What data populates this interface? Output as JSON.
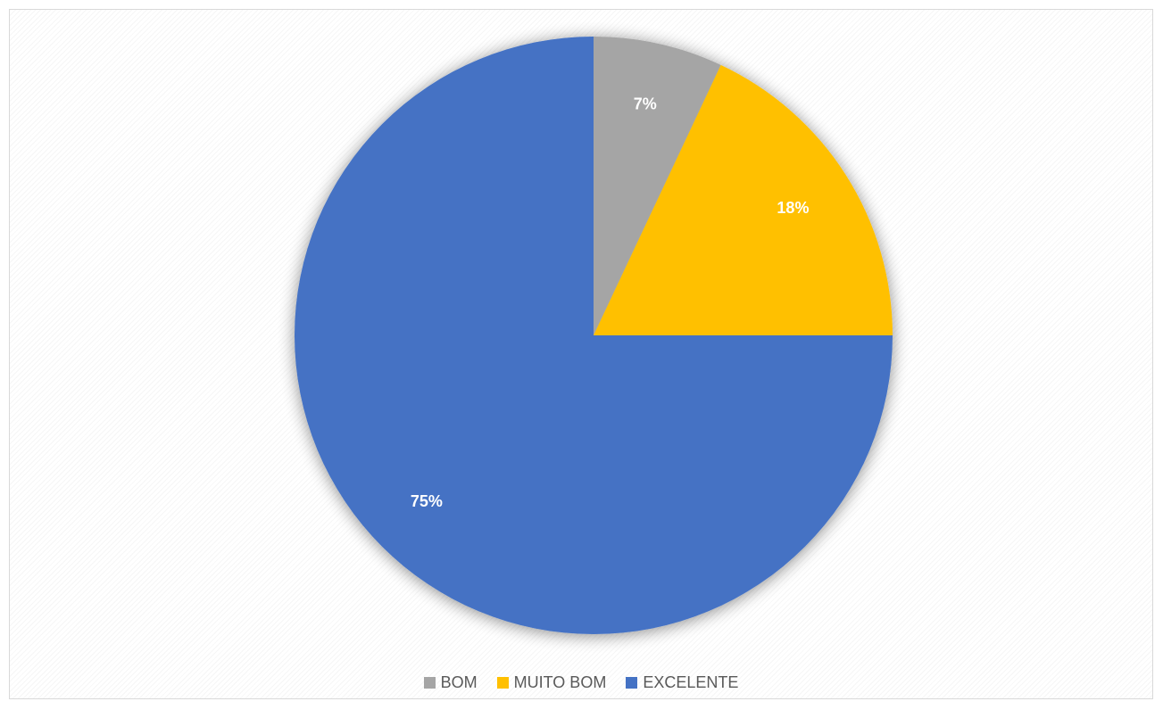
{
  "chart_data": {
    "type": "pie",
    "title": "",
    "categories": [
      "BOM",
      "MUITO BOM",
      "EXCELENTE"
    ],
    "values": [
      7,
      18,
      75
    ],
    "labels": [
      "7%",
      "18%",
      "75%"
    ],
    "colors": [
      "#a5a5a5",
      "#ffc000",
      "#4472c4"
    ],
    "legend_position": "bottom",
    "start_angle": "12 o'clock",
    "direction": "clockwise"
  }
}
